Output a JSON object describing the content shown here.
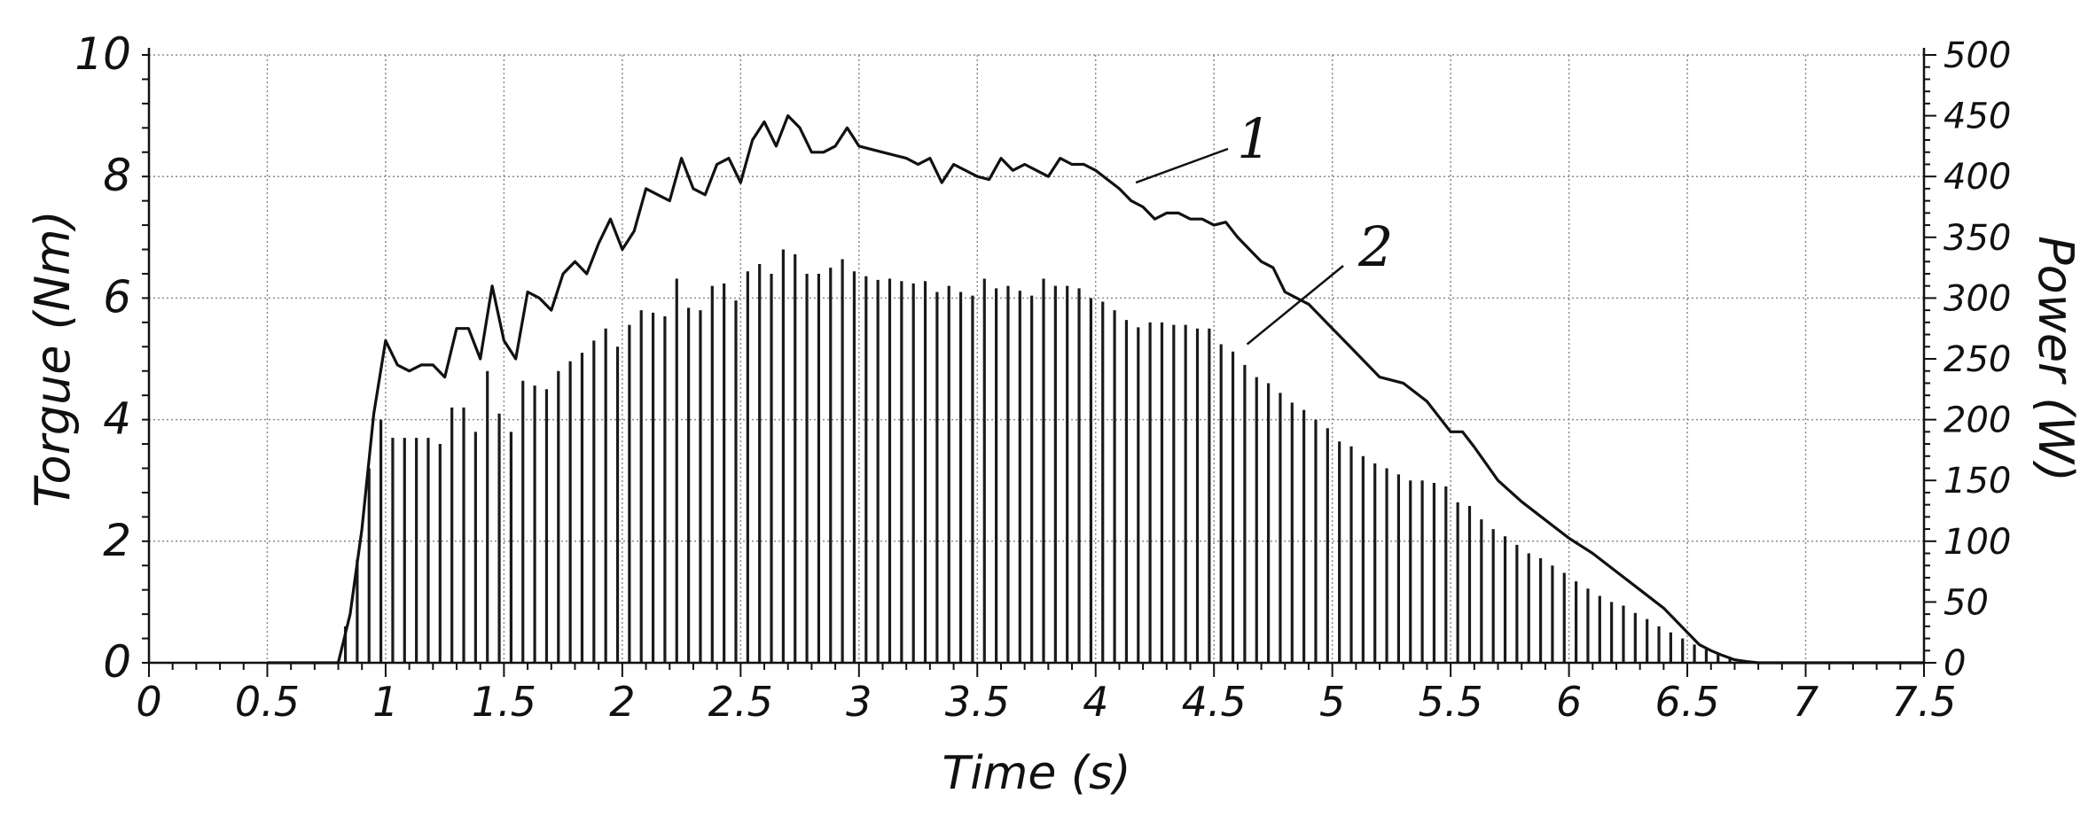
{
  "chart_data": {
    "type": "line",
    "xlabel": "Time (s)",
    "ylabel_left": "Torgue (Nm)",
    "ylabel_right": "Power (W)",
    "xlim": [
      0,
      7.5
    ],
    "ylim_left": [
      0,
      10
    ],
    "ylim_right": [
      0,
      500
    ],
    "grid": true,
    "x_ticks": [
      "0",
      "0.5",
      "1",
      "1.5",
      "2",
      "2.5",
      "3",
      "3.5",
      "4",
      "4.5",
      "5",
      "5.5",
      "6",
      "6.5",
      "7",
      "7.5"
    ],
    "y_left_ticks": [
      "0",
      "2",
      "4",
      "6",
      "8",
      "10"
    ],
    "y_right_ticks": [
      "0",
      "50",
      "100",
      "150",
      "200",
      "250",
      "300",
      "350",
      "400",
      "450",
      "500"
    ],
    "series": [
      {
        "name": "1",
        "axis": "left",
        "style": "line",
        "x": [
          0.5,
          0.8,
          0.85,
          0.9,
          0.95,
          1.0,
          1.05,
          1.1,
          1.15,
          1.2,
          1.25,
          1.3,
          1.35,
          1.4,
          1.45,
          1.5,
          1.55,
          1.6,
          1.65,
          1.7,
          1.75,
          1.8,
          1.85,
          1.9,
          1.95,
          2.0,
          2.05,
          2.1,
          2.15,
          2.2,
          2.25,
          2.3,
          2.35,
          2.4,
          2.45,
          2.5,
          2.55,
          2.6,
          2.65,
          2.7,
          2.75,
          2.8,
          2.85,
          2.9,
          2.95,
          3.0,
          3.1,
          3.2,
          3.25,
          3.3,
          3.35,
          3.4,
          3.5,
          3.55,
          3.6,
          3.65,
          3.7,
          3.75,
          3.8,
          3.85,
          3.9,
          3.95,
          4.0,
          4.05,
          4.1,
          4.15,
          4.2,
          4.25,
          4.3,
          4.35,
          4.4,
          4.45,
          4.5,
          4.55,
          4.6,
          4.65,
          4.7,
          4.75,
          4.8,
          4.85,
          4.9,
          5.0,
          5.1,
          5.2,
          5.3,
          5.4,
          5.5,
          5.55,
          5.6,
          5.7,
          5.8,
          5.9,
          6.0,
          6.1,
          6.2,
          6.3,
          6.4,
          6.5,
          6.55,
          6.6,
          6.65,
          6.7,
          6.75,
          6.8,
          7.5
        ],
        "values": [
          0,
          0,
          0.8,
          2.2,
          4.1,
          5.3,
          4.9,
          4.8,
          4.9,
          4.9,
          4.7,
          5.5,
          5.5,
          5.0,
          6.2,
          5.3,
          5.0,
          6.1,
          6.0,
          5.8,
          6.4,
          6.6,
          6.4,
          6.9,
          7.3,
          6.8,
          7.1,
          7.8,
          7.7,
          7.6,
          8.3,
          7.8,
          7.7,
          8.2,
          8.3,
          7.9,
          8.6,
          8.9,
          8.5,
          9.0,
          8.8,
          8.4,
          8.4,
          8.5,
          8.8,
          8.5,
          8.4,
          8.3,
          8.2,
          8.3,
          7.9,
          8.2,
          8.0,
          7.95,
          8.3,
          8.1,
          8.2,
          8.1,
          8.0,
          8.3,
          8.2,
          8.2,
          8.1,
          7.95,
          7.8,
          7.6,
          7.5,
          7.3,
          7.4,
          7.4,
          7.3,
          7.3,
          7.2,
          7.25,
          7.0,
          6.8,
          6.6,
          6.5,
          6.1,
          6.0,
          5.9,
          5.5,
          5.1,
          4.7,
          4.6,
          4.3,
          3.8,
          3.8,
          3.55,
          3.0,
          2.65,
          2.35,
          2.05,
          1.8,
          1.5,
          1.2,
          0.9,
          0.5,
          0.3,
          0.2,
          0.12,
          0.05,
          0.02,
          0,
          0
        ]
      },
      {
        "name": "2",
        "axis": "right",
        "style": "stem",
        "x": [
          0.83,
          0.88,
          0.93,
          0.98,
          1.03,
          1.08,
          1.13,
          1.18,
          1.23,
          1.28,
          1.33,
          1.38,
          1.43,
          1.48,
          1.53,
          1.58,
          1.63,
          1.68,
          1.73,
          1.78,
          1.83,
          1.88,
          1.93,
          1.98,
          2.03,
          2.08,
          2.13,
          2.18,
          2.23,
          2.28,
          2.33,
          2.38,
          2.43,
          2.48,
          2.53,
          2.58,
          2.63,
          2.68,
          2.73,
          2.78,
          2.83,
          2.88,
          2.93,
          2.98,
          3.03,
          3.08,
          3.13,
          3.18,
          3.23,
          3.28,
          3.33,
          3.38,
          3.43,
          3.48,
          3.53,
          3.58,
          3.63,
          3.68,
          3.73,
          3.78,
          3.83,
          3.88,
          3.93,
          3.98,
          4.03,
          4.08,
          4.13,
          4.18,
          4.23,
          4.28,
          4.33,
          4.38,
          4.43,
          4.48,
          4.53,
          4.58,
          4.63,
          4.68,
          4.73,
          4.78,
          4.83,
          4.88,
          4.93,
          4.98,
          5.03,
          5.08,
          5.13,
          5.18,
          5.23,
          5.28,
          5.33,
          5.38,
          5.43,
          5.48,
          5.53,
          5.58,
          5.63,
          5.68,
          5.73,
          5.78,
          5.83,
          5.88,
          5.93,
          5.98,
          6.03,
          6.08,
          6.13,
          6.18,
          6.23,
          6.28,
          6.33,
          6.38,
          6.43,
          6.48,
          6.53,
          6.58,
          6.63,
          6.68,
          6.73
        ],
        "values": [
          30,
          85,
          160,
          200,
          185,
          185,
          185,
          185,
          180,
          210,
          210,
          190,
          240,
          205,
          190,
          232,
          228,
          225,
          240,
          248,
          255,
          265,
          275,
          260,
          278,
          290,
          288,
          285,
          316,
          292,
          290,
          310,
          312,
          298,
          322,
          328,
          320,
          340,
          336,
          320,
          320,
          325,
          332,
          322,
          318,
          315,
          316,
          314,
          312,
          314,
          305,
          310,
          305,
          302,
          316,
          308,
          310,
          306,
          302,
          316,
          310,
          310,
          308,
          300,
          297,
          290,
          282,
          276,
          280,
          280,
          278,
          278,
          275,
          275,
          262,
          256,
          245,
          235,
          230,
          222,
          214,
          208,
          200,
          193,
          182,
          178,
          170,
          164,
          160,
          155,
          150,
          150,
          148,
          145,
          132,
          129,
          118,
          110,
          104,
          97,
          90,
          86,
          80,
          74,
          67,
          61,
          55,
          50,
          47,
          41,
          36,
          30,
          25,
          20,
          15,
          11,
          7,
          4,
          2
        ]
      }
    ]
  }
}
